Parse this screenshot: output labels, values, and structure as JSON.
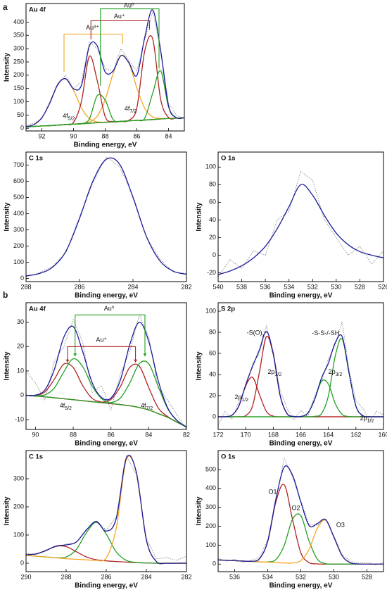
{
  "chart_data": [
    {
      "type": "line",
      "panel_label": "a",
      "title": "Au 4f",
      "x_label": "Binding energy, eV",
      "y_label": "Intensity",
      "x": [
        93,
        92.5,
        92,
        91.5,
        91,
        90.5,
        90,
        89.5,
        89,
        88.5,
        88,
        87.5,
        87,
        86.5,
        86,
        85.5,
        85,
        84.5,
        84,
        83.5,
        83
      ],
      "xlim": [
        93,
        83
      ],
      "ylim": [
        -10,
        470
      ],
      "xticks": [
        92,
        90,
        88,
        86,
        84
      ],
      "yticks": [
        0,
        50,
        100,
        150,
        200,
        250,
        300,
        350,
        400
      ],
      "annotations": [
        "Au³⁺",
        "Au⁺",
        "Au⁰",
        "4f5/2",
        "4f7/2"
      ],
      "series": [
        {
          "color": "#8a8a8a",
          "line_style": "dotted",
          "values": [
            10,
            20,
            35,
            100,
            170,
            200,
            150,
            175,
            325,
            300,
            225,
            215,
            300,
            255,
            215,
            335,
            440,
            300,
            95,
            50,
            35
          ]
        },
        {
          "color": "#f5a623",
          "values": [
            6,
            14,
            40,
            95,
            164,
            187,
            143,
            77,
            37,
            24,
            23,
            24,
            26,
            28,
            30,
            31,
            33,
            35,
            37,
            38,
            40
          ]
        },
        {
          "color": "#f5a623",
          "values": [
            5,
            7,
            9,
            10,
            12,
            14,
            16,
            18,
            24,
            46,
            108,
            206,
            274,
            245,
            152,
            75,
            43,
            37,
            37,
            38,
            40
          ]
        },
        {
          "color": "#b22222",
          "values": [
            5,
            7,
            9,
            10,
            12,
            14,
            22,
            101,
            271,
            179,
            44,
            25,
            26,
            28,
            30,
            31,
            33,
            35,
            37,
            38,
            40
          ]
        },
        {
          "color": "#b22222",
          "values": [
            5,
            7,
            9,
            10,
            12,
            14,
            16,
            17,
            19,
            21,
            23,
            24,
            26,
            30,
            77,
            292,
            337,
            110,
            41,
            38,
            40
          ]
        },
        {
          "color": "#22a022",
          "values": [
            5,
            7,
            9,
            10,
            12,
            14,
            16,
            17,
            35,
            123,
            106,
            33,
            26,
            28,
            30,
            31,
            33,
            35,
            37,
            38,
            40
          ]
        },
        {
          "color": "#22a022",
          "values": [
            5,
            7,
            9,
            10,
            12,
            14,
            16,
            17,
            19,
            21,
            23,
            24,
            26,
            28,
            30,
            38,
            132,
            217,
            81,
            39,
            40
          ]
        },
        {
          "color": "#1c1c9c",
          "values": [
            6,
            14,
            40,
            95,
            164,
            187,
            149,
            162,
            310,
            310,
            212,
            216,
            274,
            247,
            199,
            343,
            446,
            294,
            85,
            40,
            40
          ]
        }
      ]
    },
    {
      "type": "line",
      "title": "C 1s",
      "x_label": "Binding energy, eV",
      "y_label": "Intensity",
      "x": [
        288,
        287.5,
        287,
        286.5,
        286,
        285.5,
        285,
        284.5,
        284,
        283.5,
        283,
        282.5,
        282
      ],
      "xlim": [
        288,
        282
      ],
      "ylim": [
        -20,
        780
      ],
      "xticks": [
        288,
        286,
        284,
        282
      ],
      "yticks": [
        0,
        100,
        200,
        300,
        400,
        500,
        600,
        700
      ],
      "series": [
        {
          "color": "#8a8a8a",
          "line_style": "dotted",
          "values": [
            10,
            35,
            75,
            160,
            380,
            590,
            750,
            690,
            510,
            255,
            120,
            40,
            30
          ]
        },
        {
          "color": "#1c1c9c",
          "values": [
            15,
            30,
            70,
            170,
            370,
            600,
            735,
            705,
            500,
            260,
            110,
            45,
            25
          ]
        }
      ]
    },
    {
      "type": "line",
      "title": "O 1s",
      "x_label": "Binding energy, eV",
      "y_label": "Intensity",
      "x": [
        540,
        539,
        538,
        537,
        536,
        535,
        534,
        533,
        532,
        531,
        530,
        529,
        528,
        527,
        526
      ],
      "xlim": [
        540,
        526
      ],
      "ylim": [
        -30,
        117
      ],
      "xticks": [
        540,
        538,
        536,
        534,
        532,
        530,
        528,
        526
      ],
      "yticks": [
        -20,
        0,
        20,
        40,
        60,
        80,
        100
      ],
      "series": [
        {
          "color": "#8a8a8a",
          "line_style": "dotted",
          "values": [
            -25,
            -5,
            -15,
            5,
            0,
            40,
            50,
            95,
            85,
            40,
            20,
            0,
            10,
            -10,
            5
          ]
        },
        {
          "color": "#1c1c9c",
          "values": [
            -22,
            -18,
            -12,
            -3,
            10,
            30,
            55,
            80,
            68,
            45,
            25,
            12,
            4,
            0,
            -3
          ]
        }
      ]
    },
    {
      "type": "line",
      "panel_label": "b",
      "title": "Au 4f",
      "x_label": "Binding energy, eV",
      "y_label": "Intensity",
      "x": [
        90.5,
        90,
        89.5,
        89,
        88.5,
        88,
        87.5,
        87,
        86.5,
        86,
        85.5,
        85,
        84.5,
        84,
        83.5,
        83,
        82.5,
        82
      ],
      "xlim": [
        90.5,
        82
      ],
      "ylim": [
        -14,
        38
      ],
      "xticks": [
        90,
        88,
        86,
        84,
        82
      ],
      "yticks": [
        -10,
        0,
        10,
        20,
        30
      ],
      "annotations": [
        "Au⁰",
        "Au⁺",
        "4f5/2",
        "4f7/2"
      ],
      "series": [
        {
          "color": "#8a8a8a",
          "line_style": "dotted",
          "values": [
            10,
            5,
            -2,
            14,
            20,
            31,
            22,
            1,
            4,
            -6,
            9,
            18,
            33,
            24,
            3,
            -2,
            -8,
            -14
          ]
        },
        {
          "color": "#b22222",
          "values": [
            0,
            -0.3,
            -0.6,
            -1,
            -1.4,
            -1.8,
            -2.2,
            -2.6,
            -3,
            -3.4,
            -3.8,
            -4.3,
            -5,
            -6,
            -7.5,
            -9,
            -11,
            -13
          ]
        },
        {
          "color": "#b22222",
          "values": [
            0,
            0,
            1.4,
            6.6,
            12.8,
            11.4,
            4,
            -1.2,
            -2.8,
            -3.4,
            -3.8,
            -4.3,
            -5,
            -6,
            -7.5,
            -9,
            -11,
            -13
          ]
        },
        {
          "color": "#b22222",
          "values": [
            0,
            -0.3,
            -0.6,
            -1,
            -1.4,
            -1.8,
            -2.2,
            -2.6,
            -2.8,
            -1.7,
            3.6,
            11.5,
            12,
            3.2,
            -5.1,
            -8.7,
            -11,
            -13
          ]
        },
        {
          "color": "#22a022",
          "values": [
            0,
            -0.2,
            0.2,
            3,
            9.6,
            15,
            11.8,
            3.9,
            -1.3,
            -3.2,
            -3.8,
            -4.3,
            -5,
            -6,
            -7.5,
            -9,
            -11,
            -13
          ]
        },
        {
          "color": "#22a022",
          "values": [
            0,
            -0.3,
            -0.6,
            -1,
            -1.4,
            -1.8,
            -2.2,
            -2.6,
            -3,
            -3,
            -1.1,
            5.1,
            13,
            13,
            3.7,
            -5.4,
            -10.3,
            -13
          ]
        },
        {
          "color": "#1c1c9c",
          "values": [
            0,
            0.1,
            2.2,
            10.6,
            23.8,
            28.2,
            18,
            5.3,
            -0.9,
            -1.1,
            6.3,
            20.9,
            30,
            22.2,
            6.1,
            -5.1,
            -10.3,
            -13
          ]
        }
      ]
    },
    {
      "type": "line",
      "title": "S 2p",
      "x_label": "Binding energy, eV",
      "y_label": "Intensity",
      "x": [
        172,
        171.5,
        171,
        170.5,
        170,
        169.5,
        169,
        168.5,
        168,
        167.5,
        167,
        166.5,
        166,
        165.5,
        165,
        164.5,
        164,
        163.5,
        163,
        162.5,
        162,
        161.5,
        161,
        160.5,
        160
      ],
      "xlim": [
        172,
        160
      ],
      "ylim": [
        -12,
        108
      ],
      "xticks": [
        172,
        170,
        168,
        166,
        164,
        162,
        160
      ],
      "yticks": [
        0,
        20,
        40,
        60,
        80,
        100
      ],
      "annotations": [
        "-S(O)x-",
        "-S-S-/-SH",
        "2p3/2",
        "2p1/2",
        "2p3/2",
        "2p1/2"
      ],
      "series": [
        {
          "color": "#8a8a8a",
          "line_style": "dotted",
          "values": [
            -8,
            5,
            -2,
            14,
            28,
            50,
            60,
            86,
            62,
            25,
            8,
            -3,
            6,
            0,
            20,
            33,
            55,
            68,
            90,
            45,
            15,
            8,
            -4,
            5,
            2
          ]
        },
        {
          "color": "#b22222",
          "values": [
            0,
            0.1,
            1.5,
            10,
            29.2,
            37.4,
            21,
            5.1,
            0.6,
            0,
            0,
            0,
            0,
            0,
            0,
            0,
            0,
            0,
            0,
            0,
            0,
            0,
            0,
            0,
            0
          ]
        },
        {
          "color": "#b22222",
          "values": [
            0,
            0,
            0,
            0.1,
            1.1,
            10.4,
            42.5,
            75.8,
            59.1,
            20.2,
            3,
            0.3,
            0,
            0,
            0,
            0,
            0,
            0,
            0,
            0,
            0,
            0,
            0,
            0,
            0
          ]
        },
        {
          "color": "#22a022",
          "values": [
            0,
            0,
            0,
            0,
            0,
            0,
            0,
            0,
            0,
            0,
            0,
            0,
            0.3,
            3.3,
            16,
            33.7,
            31,
            12.5,
            2.2,
            0.2,
            0,
            0,
            0,
            0,
            0
          ]
        },
        {
          "color": "#22a022",
          "values": [
            0,
            0,
            0,
            0,
            0,
            0,
            0,
            0,
            0,
            0,
            0,
            0,
            0,
            0,
            0.4,
            2.9,
            19.7,
            57.6,
            73.8,
            41.4,
            10.1,
            1.1,
            0.1,
            0,
            0
          ]
        },
        {
          "color": "#1c1c9c",
          "values": [
            0,
            0.1,
            1.5,
            10.1,
            30.3,
            47.8,
            63.5,
            80.9,
            59.7,
            20.2,
            3,
            0.3,
            0.3,
            3.3,
            16.4,
            36.6,
            50.7,
            70.1,
            76,
            41.6,
            10.1,
            1.1,
            0.1,
            0,
            0
          ]
        }
      ]
    },
    {
      "type": "line",
      "title": "C 1s",
      "x_label": "Binding energy, eV",
      "y_label": "Intensity",
      "x": [
        290,
        289.5,
        289,
        288.5,
        288,
        287.5,
        287,
        286.5,
        286,
        285.5,
        285,
        284.5,
        284,
        283.5,
        283,
        282.5,
        282
      ],
      "xlim": [
        290,
        282
      ],
      "ylim": [
        -30,
        400
      ],
      "xticks": [
        290,
        288,
        286,
        284,
        282
      ],
      "yticks": [
        0,
        100,
        200,
        300
      ],
      "series": [
        {
          "color": "#8a8a8a",
          "line_style": "dotted",
          "values": [
            35,
            30,
            48,
            58,
            68,
            72,
            120,
            150,
            118,
            165,
            380,
            315,
            90,
            15,
            20,
            10,
            25
          ]
        },
        {
          "color": "#b22222",
          "values": [
            29.7,
            33,
            45.4,
            60,
            59,
            41,
            22.4,
            12.4,
            8.3,
            6,
            4,
            2,
            1,
            0,
            0,
            0,
            0
          ]
        },
        {
          "color": "#22a022",
          "values": [
            28,
            25,
            22,
            19.5,
            22,
            48,
            107,
            145,
            103,
            40,
            10,
            2.5,
            1,
            0,
            0,
            0,
            0
          ]
        },
        {
          "color": "#f5a623",
          "values": [
            28,
            25,
            22,
            19,
            16,
            14,
            12,
            10.3,
            19,
            125,
            367,
            322,
            83,
            6,
            0,
            0,
            0
          ]
        },
        {
          "color": "#1c1c9c",
          "values": [
            30,
            33,
            45,
            61,
            65,
            75,
            117,
            148,
            114,
            159,
            373,
            323,
            83,
            6,
            0,
            0,
            0
          ]
        }
      ]
    },
    {
      "type": "line",
      "title": "O 1s",
      "x_label": "Binding energy, eV",
      "y_label": "Intensity",
      "x": [
        537,
        536.5,
        536,
        535.5,
        535,
        534.5,
        534,
        533.5,
        533,
        532.5,
        532,
        531.5,
        531,
        530.5,
        530,
        529.5,
        529,
        528.5,
        528,
        527.5,
        527
      ],
      "xlim": [
        537,
        527
      ],
      "ylim": [
        -40,
        600
      ],
      "xticks": [
        536,
        534,
        532,
        530,
        528
      ],
      "yticks": [
        0,
        100,
        200,
        300,
        400,
        500
      ],
      "annotations": [
        "O1",
        "O2",
        "O3"
      ],
      "series": [
        {
          "color": "#8a8a8a",
          "line_style": "dotted",
          "values": [
            30,
            15,
            25,
            10,
            20,
            35,
            130,
            340,
            560,
            460,
            335,
            210,
            205,
            240,
            150,
            50,
            15,
            5,
            10,
            -5,
            8
          ]
        },
        {
          "color": "#b22222",
          "values": [
            22,
            20,
            18,
            16,
            15,
            28,
            120,
            331,
            419,
            236,
            60,
            8,
            1,
            0,
            0,
            0,
            0,
            0,
            0,
            0,
            0
          ]
        },
        {
          "color": "#22a022",
          "values": [
            22,
            20,
            18,
            16,
            14,
            12,
            11.3,
            24.5,
            99.7,
            237,
            256,
            122,
            26,
            2.5,
            0,
            0,
            0,
            0,
            0,
            0,
            0
          ]
        },
        {
          "color": "#f5a623",
          "values": [
            22,
            20,
            18,
            16,
            14,
            12,
            10,
            8,
            6,
            5.6,
            18.5,
            78,
            189,
            232,
            143,
            44,
            6.6,
            0.5,
            0,
            0,
            0
          ]
        },
        {
          "color": "#1c1c9c",
          "values": [
            22,
            20,
            18,
            16,
            15,
            28,
            121,
            347,
            513,
            470,
            328,
            204,
            214,
            235,
            143,
            44,
            7,
            0.5,
            0,
            0,
            0
          ]
        }
      ]
    }
  ]
}
